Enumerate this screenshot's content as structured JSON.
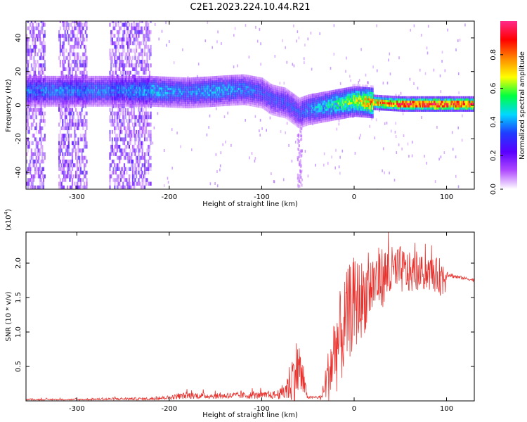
{
  "figure_title": "C2E1.2023.224.10.44.R21",
  "colorbar": {
    "label": "Normalized spectral amplitude",
    "ticks": [
      "0.0",
      "0.2",
      "0.4",
      "0.6",
      "0.8"
    ],
    "colors": [
      "#ffffff",
      "#b04bff",
      "#5a00ff",
      "#1f3cff",
      "#00d8ff",
      "#00ff40",
      "#ffff00",
      "#ff8800",
      "#ff0000",
      "#ff2a8a"
    ]
  },
  "chart_data": [
    {
      "type": "heatmap",
      "xlabel": "Height of straight line (km)",
      "ylabel": "Frequency (Hz)",
      "xlim": [
        -355,
        130
      ],
      "ylim": [
        -50,
        50
      ],
      "xticks": [
        "-300",
        "-200",
        "-100",
        "0",
        "100"
      ],
      "yticks": [
        "-40",
        "-20",
        "0",
        "20",
        "40"
      ],
      "ridge": {
        "x": [
          -355,
          -300,
          -250,
          -220,
          -180,
          -150,
          -120,
          -100,
          -90,
          -75,
          -60,
          -50,
          -40,
          -20,
          0,
          20,
          50,
          80,
          100,
          130
        ],
        "center_hz": [
          8,
          8,
          8,
          8,
          7,
          8,
          9,
          7,
          3,
          1,
          -5,
          -3,
          -2,
          0,
          2,
          1,
          0,
          0,
          0,
          0
        ],
        "amplitude": [
          0.35,
          0.35,
          0.35,
          0.4,
          0.35,
          0.4,
          0.35,
          0.3,
          0.3,
          0.3,
          0.3,
          0.35,
          0.4,
          0.5,
          0.6,
          0.75,
          0.85,
          0.9,
          0.9,
          0.85
        ]
      },
      "noise_regions_km": [
        [
          -355,
          -335
        ],
        [
          -320,
          -290
        ],
        [
          -265,
          -220
        ]
      ]
    },
    {
      "type": "line",
      "xlabel": "Height of straight line (km)",
      "ylabel": "SNR (10 * v/v)",
      "y_multiplier": "(x10",
      "y_multiplier_exp": "4",
      "y_multiplier_close": ")",
      "xlim": [
        -355,
        130
      ],
      "ylim": [
        0,
        2.45
      ],
      "xticks": [
        "-300",
        "-200",
        "-100",
        "0",
        "100"
      ],
      "yticks": [
        "0.5",
        "1.0",
        "1.5",
        "2.0"
      ],
      "series": [
        {
          "color": "#e8322e",
          "x": [
            -355,
            -300,
            -250,
            -220,
            -200,
            -180,
            -150,
            -120,
            -100,
            -90,
            -80,
            -75,
            -70,
            -65,
            -60,
            -55,
            -50,
            -45,
            -40,
            -35,
            -30,
            -25,
            -20,
            -15,
            -10,
            -5,
            0,
            10,
            20,
            30,
            40,
            50,
            60,
            70,
            80,
            90,
            95,
            98,
            100,
            110,
            120,
            130
          ],
          "y": [
            0.02,
            0.02,
            0.03,
            0.03,
            0.05,
            0.08,
            0.07,
            0.08,
            0.08,
            0.08,
            0.1,
            0.15,
            0.25,
            0.4,
            0.5,
            0.25,
            0.05,
            0.05,
            0.05,
            0.05,
            0.3,
            0.5,
            0.8,
            0.9,
            1.1,
            1.3,
            1.4,
            1.5,
            1.7,
            1.8,
            1.85,
            1.9,
            1.85,
            1.85,
            1.85,
            1.82,
            1.8,
            1.8,
            1.85,
            1.8,
            1.78,
            1.75
          ],
          "spread": [
            0.01,
            0.01,
            0.02,
            0.02,
            0.03,
            0.05,
            0.04,
            0.05,
            0.05,
            0.05,
            0.08,
            0.15,
            0.3,
            0.4,
            0.5,
            0.2,
            0.02,
            0.02,
            0.02,
            0.05,
            0.3,
            0.5,
            0.7,
            0.7,
            0.7,
            0.7,
            0.7,
            0.55,
            0.5,
            0.45,
            0.4,
            0.35,
            0.3,
            0.25,
            0.25,
            0.25,
            0.3,
            0.35,
            0.05,
            0.03,
            0.02,
            0.02
          ]
        }
      ]
    }
  ]
}
